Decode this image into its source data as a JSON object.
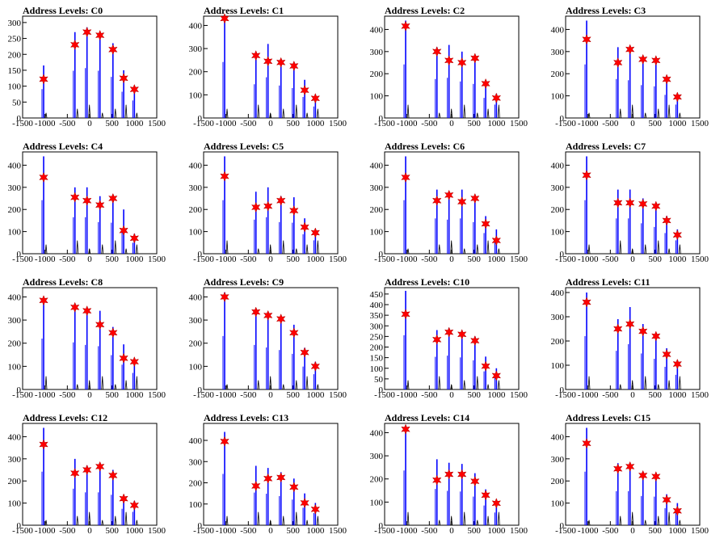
{
  "figure": {
    "colors": {
      "peak_line": "#0000ff",
      "star_fill": "#ff0000",
      "star_stroke": "#aa0000",
      "axis": "#000000",
      "black_line": "#000000"
    },
    "xticks": [
      -1500,
      -1000,
      -500,
      0,
      500,
      1000,
      1500
    ]
  },
  "chart_data": [
    {
      "type": "histogram",
      "title": "Address Levels: C0",
      "xlim": [
        -1500,
        1500
      ],
      "ylim": [
        0,
        320
      ],
      "yticks": [
        0,
        50,
        100,
        150,
        200,
        250,
        300
      ],
      "peaks": [
        {
          "x": -1030,
          "y": 165
        },
        {
          "x": -330,
          "y": 270
        },
        {
          "x": -60,
          "y": 285
        },
        {
          "x": 230,
          "y": 270
        },
        {
          "x": 520,
          "y": 235
        },
        {
          "x": 760,
          "y": 150
        },
        {
          "x": 1000,
          "y": 100
        }
      ],
      "stars": [
        {
          "x": -1030,
          "y": 122
        },
        {
          "x": -330,
          "y": 230
        },
        {
          "x": -60,
          "y": 270
        },
        {
          "x": 230,
          "y": 260
        },
        {
          "x": 520,
          "y": 215
        },
        {
          "x": 760,
          "y": 125
        },
        {
          "x": 1000,
          "y": 90
        }
      ]
    },
    {
      "type": "histogram",
      "title": "Address Levels: C1",
      "xlim": [
        -1500,
        1500
      ],
      "ylim": [
        0,
        440
      ],
      "yticks": [
        0,
        100,
        200,
        300,
        400
      ],
      "peaks": [
        {
          "x": -1030,
          "y": 440
        },
        {
          "x": -330,
          "y": 265
        },
        {
          "x": -60,
          "y": 320
        },
        {
          "x": 230,
          "y": 255
        },
        {
          "x": 520,
          "y": 235
        },
        {
          "x": 760,
          "y": 165
        },
        {
          "x": 1000,
          "y": 90
        }
      ],
      "stars": [
        {
          "x": -1030,
          "y": 430
        },
        {
          "x": -330,
          "y": 270
        },
        {
          "x": -60,
          "y": 245
        },
        {
          "x": 230,
          "y": 240
        },
        {
          "x": 520,
          "y": 225
        },
        {
          "x": 760,
          "y": 120
        },
        {
          "x": 1000,
          "y": 85
        }
      ]
    },
    {
      "type": "histogram",
      "title": "Address Levels: C2",
      "xlim": [
        -1500,
        1500
      ],
      "ylim": [
        0,
        460
      ],
      "yticks": [
        0,
        100,
        200,
        300,
        400
      ],
      "peaks": [
        {
          "x": -1030,
          "y": 440
        },
        {
          "x": -330,
          "y": 320
        },
        {
          "x": -60,
          "y": 330
        },
        {
          "x": 230,
          "y": 300
        },
        {
          "x": 520,
          "y": 280
        },
        {
          "x": 760,
          "y": 165
        },
        {
          "x": 1000,
          "y": 110
        }
      ],
      "stars": [
        {
          "x": -1030,
          "y": 415
        },
        {
          "x": -330,
          "y": 300
        },
        {
          "x": -60,
          "y": 260
        },
        {
          "x": 230,
          "y": 250
        },
        {
          "x": 520,
          "y": 270
        },
        {
          "x": 760,
          "y": 155
        },
        {
          "x": 1000,
          "y": 90
        }
      ]
    },
    {
      "type": "histogram",
      "title": "Address Levels: C3",
      "xlim": [
        -1500,
        1500
      ],
      "ylim": [
        0,
        460
      ],
      "yticks": [
        0,
        100,
        200,
        300,
        400
      ],
      "peaks": [
        {
          "x": -1030,
          "y": 440
        },
        {
          "x": -330,
          "y": 320
        },
        {
          "x": -60,
          "y": 310
        },
        {
          "x": 230,
          "y": 270
        },
        {
          "x": 520,
          "y": 260
        },
        {
          "x": 760,
          "y": 190
        },
        {
          "x": 1000,
          "y": 110
        }
      ],
      "stars": [
        {
          "x": -1030,
          "y": 355
        },
        {
          "x": -330,
          "y": 250
        },
        {
          "x": -60,
          "y": 310
        },
        {
          "x": 230,
          "y": 265
        },
        {
          "x": 520,
          "y": 260
        },
        {
          "x": 760,
          "y": 175
        },
        {
          "x": 1000,
          "y": 95
        }
      ]
    },
    {
      "type": "histogram",
      "title": "Address Levels: C4",
      "xlim": [
        -1500,
        1500
      ],
      "ylim": [
        0,
        460
      ],
      "yticks": [
        0,
        100,
        200,
        300,
        400
      ],
      "peaks": [
        {
          "x": -1030,
          "y": 440
        },
        {
          "x": -330,
          "y": 300
        },
        {
          "x": -60,
          "y": 300
        },
        {
          "x": 230,
          "y": 260
        },
        {
          "x": 520,
          "y": 255
        },
        {
          "x": 760,
          "y": 200
        },
        {
          "x": 1000,
          "y": 90
        }
      ],
      "stars": [
        {
          "x": -1030,
          "y": 345
        },
        {
          "x": -330,
          "y": 255
        },
        {
          "x": -60,
          "y": 240
        },
        {
          "x": 230,
          "y": 220
        },
        {
          "x": 520,
          "y": 250
        },
        {
          "x": 760,
          "y": 105
        },
        {
          "x": 1000,
          "y": 70
        }
      ]
    },
    {
      "type": "histogram",
      "title": "Address Levels: C5",
      "xlim": [
        -1500,
        1500
      ],
      "ylim": [
        0,
        460
      ],
      "yticks": [
        0,
        100,
        200,
        300,
        400
      ],
      "peaks": [
        {
          "x": -1030,
          "y": 440
        },
        {
          "x": -330,
          "y": 280
        },
        {
          "x": -60,
          "y": 300
        },
        {
          "x": 230,
          "y": 260
        },
        {
          "x": 520,
          "y": 255
        },
        {
          "x": 760,
          "y": 160
        },
        {
          "x": 1000,
          "y": 110
        }
      ],
      "stars": [
        {
          "x": -1030,
          "y": 350
        },
        {
          "x": -330,
          "y": 210
        },
        {
          "x": -60,
          "y": 215
        },
        {
          "x": 230,
          "y": 240
        },
        {
          "x": 520,
          "y": 195
        },
        {
          "x": 760,
          "y": 120
        },
        {
          "x": 1000,
          "y": 95
        }
      ]
    },
    {
      "type": "histogram",
      "title": "Address Levels: C6",
      "xlim": [
        -1500,
        1500
      ],
      "ylim": [
        0,
        460
      ],
      "yticks": [
        0,
        100,
        200,
        300,
        400
      ],
      "peaks": [
        {
          "x": -1030,
          "y": 440
        },
        {
          "x": -330,
          "y": 290
        },
        {
          "x": -60,
          "y": 280
        },
        {
          "x": 230,
          "y": 290
        },
        {
          "x": 520,
          "y": 260
        },
        {
          "x": 760,
          "y": 170
        },
        {
          "x": 1000,
          "y": 110
        }
      ],
      "stars": [
        {
          "x": -1030,
          "y": 345
        },
        {
          "x": -330,
          "y": 240
        },
        {
          "x": -60,
          "y": 265
        },
        {
          "x": 230,
          "y": 235
        },
        {
          "x": 520,
          "y": 250
        },
        {
          "x": 760,
          "y": 135
        },
        {
          "x": 1000,
          "y": 60
        }
      ]
    },
    {
      "type": "histogram",
      "title": "Address Levels: C7",
      "xlim": [
        -1500,
        1500
      ],
      "ylim": [
        0,
        460
      ],
      "yticks": [
        0,
        100,
        200,
        300,
        400
      ],
      "peaks": [
        {
          "x": -1030,
          "y": 440
        },
        {
          "x": -330,
          "y": 290
        },
        {
          "x": -60,
          "y": 290
        },
        {
          "x": 230,
          "y": 250
        },
        {
          "x": 520,
          "y": 220
        },
        {
          "x": 760,
          "y": 170
        },
        {
          "x": 1000,
          "y": 110
        }
      ],
      "stars": [
        {
          "x": -1030,
          "y": 355
        },
        {
          "x": -330,
          "y": 230
        },
        {
          "x": -60,
          "y": 230
        },
        {
          "x": 230,
          "y": 225
        },
        {
          "x": 520,
          "y": 215
        },
        {
          "x": 760,
          "y": 150
        },
        {
          "x": 1000,
          "y": 85
        }
      ]
    },
    {
      "type": "histogram",
      "title": "Address Levels: C8",
      "xlim": [
        -1500,
        1500
      ],
      "ylim": [
        0,
        440
      ],
      "yticks": [
        0,
        100,
        200,
        300,
        400
      ],
      "peaks": [
        {
          "x": -1030,
          "y": 400
        },
        {
          "x": -330,
          "y": 370
        },
        {
          "x": -60,
          "y": 350
        },
        {
          "x": 230,
          "y": 340
        },
        {
          "x": 520,
          "y": 270
        },
        {
          "x": 760,
          "y": 195
        },
        {
          "x": 1000,
          "y": 130
        }
      ],
      "stars": [
        {
          "x": -1030,
          "y": 385
        },
        {
          "x": -330,
          "y": 355
        },
        {
          "x": -60,
          "y": 340
        },
        {
          "x": 230,
          "y": 280
        },
        {
          "x": 520,
          "y": 245
        },
        {
          "x": 760,
          "y": 135
        },
        {
          "x": 1000,
          "y": 120
        }
      ]
    },
    {
      "type": "histogram",
      "title": "Address Levels: C9",
      "xlim": [
        -1500,
        1500
      ],
      "ylim": [
        0,
        440
      ],
      "yticks": [
        0,
        100,
        200,
        300,
        400
      ],
      "peaks": [
        {
          "x": -1030,
          "y": 420
        },
        {
          "x": -330,
          "y": 350
        },
        {
          "x": -60,
          "y": 330
        },
        {
          "x": 230,
          "y": 310
        },
        {
          "x": 520,
          "y": 280
        },
        {
          "x": 760,
          "y": 180
        },
        {
          "x": 1000,
          "y": 120
        }
      ],
      "stars": [
        {
          "x": -1030,
          "y": 400
        },
        {
          "x": -330,
          "y": 335
        },
        {
          "x": -60,
          "y": 320
        },
        {
          "x": 230,
          "y": 305
        },
        {
          "x": 520,
          "y": 245
        },
        {
          "x": 760,
          "y": 160
        },
        {
          "x": 1000,
          "y": 100
        }
      ]
    },
    {
      "type": "histogram",
      "title": "Address Levels: C10",
      "xlim": [
        -1500,
        1500
      ],
      "ylim": [
        0,
        480
      ],
      "yticks": [
        0,
        50,
        100,
        150,
        200,
        250,
        300,
        350,
        400,
        450
      ],
      "peaks": [
        {
          "x": -1030,
          "y": 465
        },
        {
          "x": -330,
          "y": 280
        },
        {
          "x": -60,
          "y": 290
        },
        {
          "x": 230,
          "y": 275
        },
        {
          "x": 520,
          "y": 250
        },
        {
          "x": 760,
          "y": 155
        },
        {
          "x": 1000,
          "y": 100
        }
      ],
      "stars": [
        {
          "x": -1030,
          "y": 355
        },
        {
          "x": -330,
          "y": 235
        },
        {
          "x": -60,
          "y": 270
        },
        {
          "x": 230,
          "y": 260
        },
        {
          "x": 520,
          "y": 230
        },
        {
          "x": 760,
          "y": 110
        },
        {
          "x": 1000,
          "y": 65
        }
      ]
    },
    {
      "type": "histogram",
      "title": "Address Levels: C11",
      "xlim": [
        -1500,
        1500
      ],
      "ylim": [
        0,
        420
      ],
      "yticks": [
        0,
        100,
        200,
        300,
        400
      ],
      "peaks": [
        {
          "x": -1030,
          "y": 400
        },
        {
          "x": -330,
          "y": 290
        },
        {
          "x": -60,
          "y": 340
        },
        {
          "x": 230,
          "y": 270
        },
        {
          "x": 520,
          "y": 230
        },
        {
          "x": 760,
          "y": 170
        },
        {
          "x": 1000,
          "y": 110
        }
      ],
      "stars": [
        {
          "x": -1030,
          "y": 360
        },
        {
          "x": -330,
          "y": 250
        },
        {
          "x": -60,
          "y": 270
        },
        {
          "x": 230,
          "y": 240
        },
        {
          "x": 520,
          "y": 220
        },
        {
          "x": 760,
          "y": 145
        },
        {
          "x": 1000,
          "y": 105
        }
      ]
    },
    {
      "type": "histogram",
      "title": "Address Levels: C12",
      "xlim": [
        -1500,
        1500
      ],
      "ylim": [
        0,
        460
      ],
      "yticks": [
        0,
        100,
        200,
        300,
        400
      ],
      "peaks": [
        {
          "x": -1030,
          "y": 440
        },
        {
          "x": -330,
          "y": 300
        },
        {
          "x": -60,
          "y": 270
        },
        {
          "x": 230,
          "y": 270
        },
        {
          "x": 520,
          "y": 250
        },
        {
          "x": 760,
          "y": 135
        },
        {
          "x": 1000,
          "y": 110
        }
      ],
      "stars": [
        {
          "x": -1030,
          "y": 365
        },
        {
          "x": -330,
          "y": 235
        },
        {
          "x": -60,
          "y": 250
        },
        {
          "x": 230,
          "y": 265
        },
        {
          "x": 520,
          "y": 225
        },
        {
          "x": 760,
          "y": 120
        },
        {
          "x": 1000,
          "y": 90
        }
      ]
    },
    {
      "type": "histogram",
      "title": "Address Levels: C13",
      "xlim": [
        -1500,
        1500
      ],
      "ylim": [
        0,
        480
      ],
      "yticks": [
        0,
        100,
        200,
        300,
        400
      ],
      "peaks": [
        {
          "x": -1030,
          "y": 440
        },
        {
          "x": -330,
          "y": 280
        },
        {
          "x": -60,
          "y": 270
        },
        {
          "x": 230,
          "y": 250
        },
        {
          "x": 520,
          "y": 220
        },
        {
          "x": 760,
          "y": 150
        },
        {
          "x": 1000,
          "y": 105
        }
      ],
      "stars": [
        {
          "x": -1030,
          "y": 395
        },
        {
          "x": -330,
          "y": 185
        },
        {
          "x": -60,
          "y": 220
        },
        {
          "x": 230,
          "y": 225
        },
        {
          "x": 520,
          "y": 180
        },
        {
          "x": 760,
          "y": 105
        },
        {
          "x": 1000,
          "y": 75
        }
      ]
    },
    {
      "type": "histogram",
      "title": "Address Levels: C14",
      "xlim": [
        -1500,
        1500
      ],
      "ylim": [
        0,
        440
      ],
      "yticks": [
        0,
        100,
        200,
        300,
        400
      ],
      "peaks": [
        {
          "x": -1030,
          "y": 430
        },
        {
          "x": -330,
          "y": 285
        },
        {
          "x": -60,
          "y": 270
        },
        {
          "x": 230,
          "y": 265
        },
        {
          "x": 520,
          "y": 225
        },
        {
          "x": 760,
          "y": 155
        },
        {
          "x": 1000,
          "y": 100
        }
      ],
      "stars": [
        {
          "x": -1030,
          "y": 415
        },
        {
          "x": -330,
          "y": 195
        },
        {
          "x": -60,
          "y": 220
        },
        {
          "x": 230,
          "y": 220
        },
        {
          "x": 520,
          "y": 190
        },
        {
          "x": 760,
          "y": 130
        },
        {
          "x": 1000,
          "y": 95
        }
      ]
    },
    {
      "type": "histogram",
      "title": "Address Levels: C15",
      "xlim": [
        -1500,
        1500
      ],
      "ylim": [
        0,
        460
      ],
      "yticks": [
        0,
        100,
        200,
        300,
        400
      ],
      "peaks": [
        {
          "x": -1030,
          "y": 440
        },
        {
          "x": -330,
          "y": 280
        },
        {
          "x": -60,
          "y": 280
        },
        {
          "x": 230,
          "y": 240
        },
        {
          "x": 520,
          "y": 235
        },
        {
          "x": 760,
          "y": 140
        },
        {
          "x": 1000,
          "y": 100
        }
      ],
      "stars": [
        {
          "x": -1030,
          "y": 370
        },
        {
          "x": -330,
          "y": 255
        },
        {
          "x": -60,
          "y": 265
        },
        {
          "x": 230,
          "y": 225
        },
        {
          "x": 520,
          "y": 220
        },
        {
          "x": 760,
          "y": 115
        },
        {
          "x": 1000,
          "y": 65
        }
      ]
    }
  ]
}
